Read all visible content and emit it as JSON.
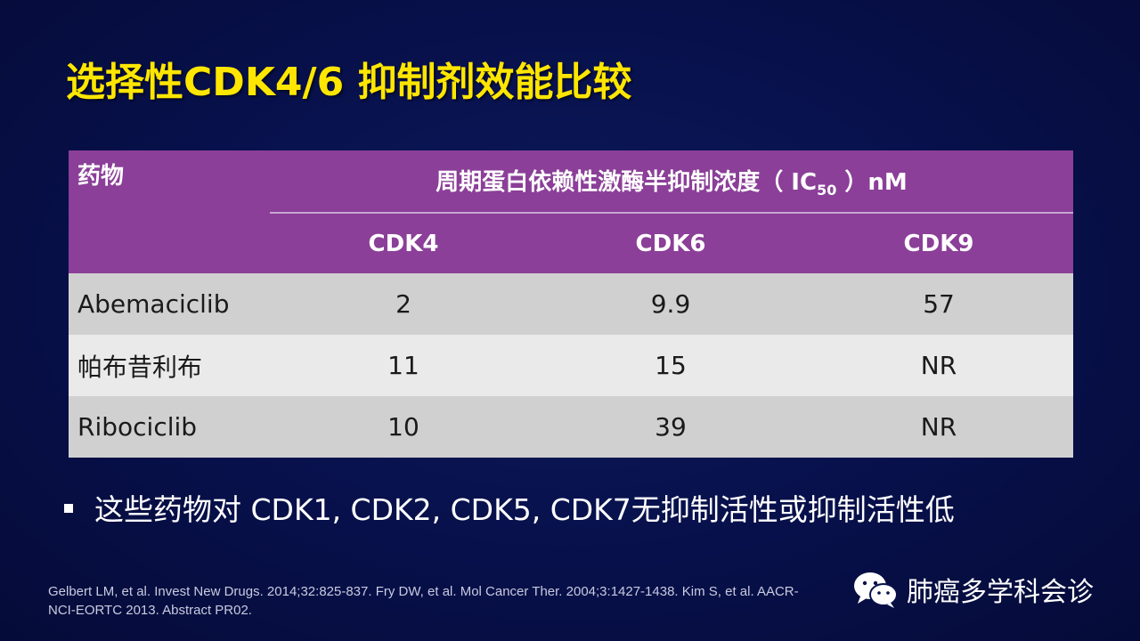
{
  "slide": {
    "title": "选择性CDK4/6 抑制剂效能比较"
  },
  "table": {
    "drug_header": "药物",
    "ic50_header_prefix": "周期蛋白依赖性激酶半抑制浓度（ IC",
    "ic50_header_sub": "50",
    "ic50_header_suffix": " ）nM",
    "columns": [
      "CDK4",
      "CDK6",
      "CDK9"
    ],
    "rows": [
      {
        "drug": "Abemaciclib",
        "values": [
          "2",
          "9.9",
          "57"
        ]
      },
      {
        "drug": "帕布昔利布",
        "values": [
          "11",
          "15",
          "NR"
        ]
      },
      {
        "drug": "Ribociclib",
        "values": [
          "10",
          "39",
          "NR"
        ]
      }
    ],
    "colors": {
      "header_bg": "#8b3f98",
      "row_dark": "#d0d0d0",
      "row_light": "#eaeaea"
    }
  },
  "bullet": {
    "text": "这些药物对 CDK1, CDK2, CDK5, CDK7无抑制活性或抑制活性低"
  },
  "reference": {
    "text": "Gelbert LM, et al. Invest New Drugs. 2014;32:825-837. Fry DW, et al. Mol Cancer Ther. 2004;3:1427-1438. Kim S, et al. AACR-NCI-EORTC 2013. Abstract PR02."
  },
  "watermark": {
    "icon": "wechat-icon",
    "text": "肺癌多学科会诊"
  },
  "theme": {
    "background": "#07104a",
    "title_color": "#ffe600"
  }
}
